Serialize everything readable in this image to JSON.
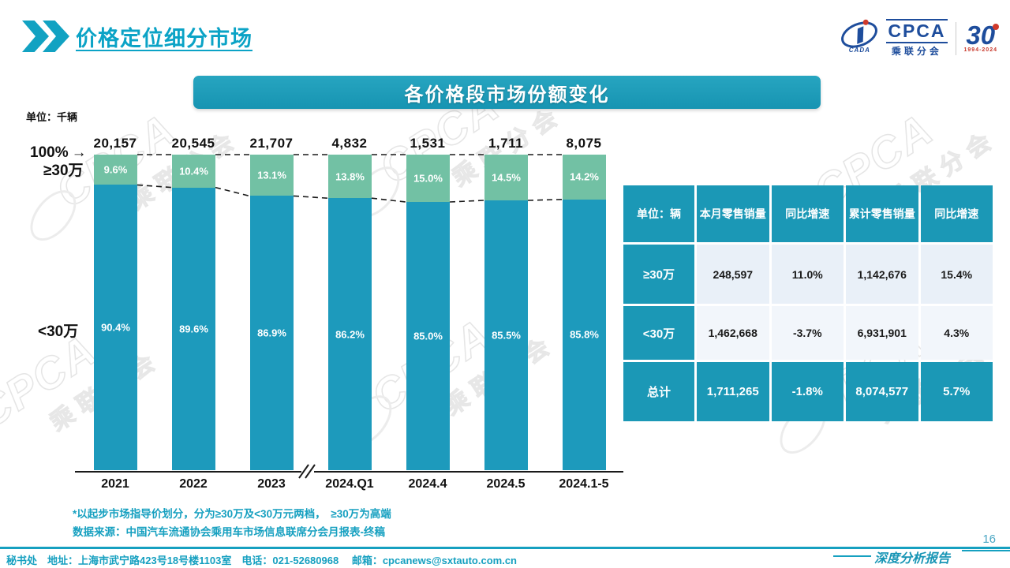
{
  "header": {
    "title": "价格定位细分市场"
  },
  "logo": {
    "emblem_text": "CADA",
    "cpca": "CPCA",
    "cpca_sub": "乘联分会",
    "anniversary": "30",
    "anniversary_years": "1994-2024"
  },
  "banner": {
    "title": "各价格段市场份额变化"
  },
  "icons": {
    "arrow_right": "→"
  },
  "watermark": {
    "text": "CPCA",
    "sub": "乘联分会"
  },
  "chart_data": {
    "type": "bar",
    "variant": "stacked-percent",
    "title": "各价格段市场份额变化",
    "unit_label": "单位：千辆",
    "categories": [
      "2021",
      "2022",
      "2023",
      "2024.Q1",
      "2024.4",
      "2024.5",
      "2024.1-5"
    ],
    "totals": [
      "20,157",
      "20,545",
      "21,707",
      "4,832",
      "1,531",
      "1,711",
      "8,075"
    ],
    "series": [
      {
        "name": "≥30万",
        "color": "#72c1a4",
        "values": [
          9.6,
          10.4,
          13.1,
          13.8,
          15.0,
          14.5,
          14.2
        ]
      },
      {
        "name": "<30万",
        "color": "#1d9abc",
        "values": [
          90.4,
          89.6,
          86.9,
          86.2,
          85.0,
          85.5,
          85.8
        ]
      }
    ],
    "ylim": [
      0,
      100
    ],
    "grid": false,
    "axis_break_after": "2023",
    "left_labels": {
      "top": "100%",
      "upper": "≥30万",
      "lower": "<30万"
    }
  },
  "table": {
    "headers": [
      "单位：辆",
      "本月零售销量",
      "同比增速",
      "累计零售销量",
      "同比增速"
    ],
    "rows": [
      {
        "label": "≥30万",
        "cells": [
          "248,597",
          "11.0%",
          "1,142,676",
          "15.4%"
        ],
        "total": false
      },
      {
        "label": "<30万",
        "cells": [
          "1,462,668",
          "-3.7%",
          "6,931,901",
          "4.3%"
        ],
        "total": false
      },
      {
        "label": "总计",
        "cells": [
          "1,711,265",
          "-1.8%",
          "8,074,577",
          "5.7%"
        ],
        "total": true
      }
    ]
  },
  "notes": [
    "*以起步市场指导价划分，分为≥30万及<30万元两档，　≥30万为高端",
    "数据来源：中国汽车流通协会乘用车市场信息联席分会月报表-终稿"
  ],
  "footer": {
    "text": "秘书处　地址：上海市武宁路423号18号楼1103室　电话：021-52680968 　邮箱：cpcanews@sxtauto.com.cn",
    "page": "16",
    "report_label": "深度分析报告"
  }
}
